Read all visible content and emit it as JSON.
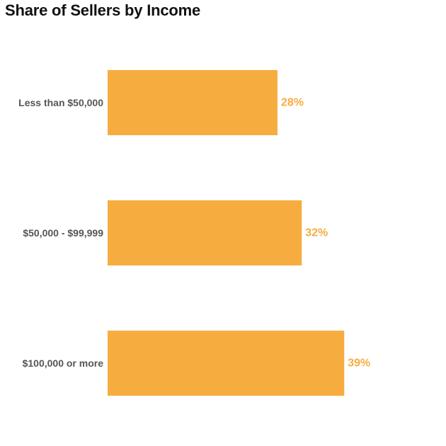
{
  "colors": {
    "bar": "#F7AC40",
    "value_label": "#F7AC40",
    "category_label": "#555555",
    "title": "#111111"
  },
  "chart_data": {
    "type": "bar",
    "orientation": "horizontal",
    "title": "Share of Sellers by Income",
    "xlabel": "",
    "ylabel": "",
    "categories": [
      "Less than $50,000",
      "$50,000 - $99,999",
      "$100,000 or more"
    ],
    "values": [
      28,
      32,
      39
    ],
    "value_labels": [
      "28%",
      "32%",
      "39%"
    ],
    "xlim": [
      0,
      55
    ],
    "grid": false,
    "legend": "none"
  }
}
